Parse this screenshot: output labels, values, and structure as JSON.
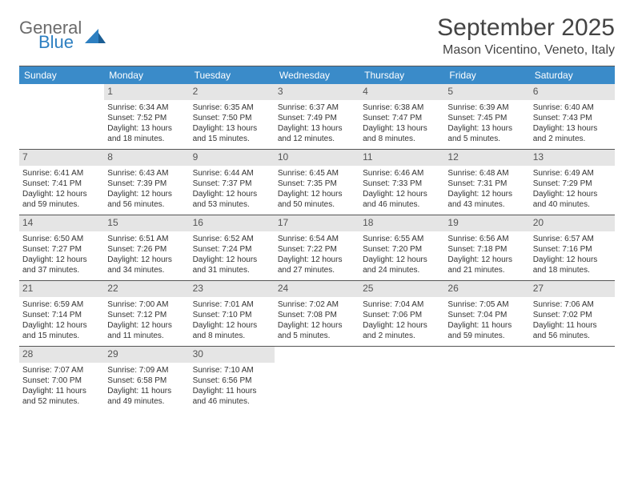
{
  "logo": {
    "word1": "General",
    "word2": "Blue"
  },
  "title": "September 2025",
  "location": "Mason Vicentino, Veneto, Italy",
  "colors": {
    "header_bg": "#3a8bc9",
    "header_text": "#ffffff",
    "daynum_bg": "#e5e5e5",
    "daynum_text": "#555555",
    "body_text": "#333333",
    "rule": "#555555",
    "logo_gray": "#6b6b6b",
    "logo_blue": "#2d7fc1"
  },
  "typography": {
    "title_fontsize": 30,
    "location_fontsize": 16,
    "header_fontsize": 12,
    "daynum_fontsize": 12,
    "body_fontsize": 10
  },
  "dayHeaders": [
    "Sunday",
    "Monday",
    "Tuesday",
    "Wednesday",
    "Thursday",
    "Friday",
    "Saturday"
  ],
  "weeks": [
    [
      null,
      {
        "n": "1",
        "sr": "Sunrise: 6:34 AM",
        "ss": "Sunset: 7:52 PM",
        "d1": "Daylight: 13 hours",
        "d2": "and 18 minutes."
      },
      {
        "n": "2",
        "sr": "Sunrise: 6:35 AM",
        "ss": "Sunset: 7:50 PM",
        "d1": "Daylight: 13 hours",
        "d2": "and 15 minutes."
      },
      {
        "n": "3",
        "sr": "Sunrise: 6:37 AM",
        "ss": "Sunset: 7:49 PM",
        "d1": "Daylight: 13 hours",
        "d2": "and 12 minutes."
      },
      {
        "n": "4",
        "sr": "Sunrise: 6:38 AM",
        "ss": "Sunset: 7:47 PM",
        "d1": "Daylight: 13 hours",
        "d2": "and 8 minutes."
      },
      {
        "n": "5",
        "sr": "Sunrise: 6:39 AM",
        "ss": "Sunset: 7:45 PM",
        "d1": "Daylight: 13 hours",
        "d2": "and 5 minutes."
      },
      {
        "n": "6",
        "sr": "Sunrise: 6:40 AM",
        "ss": "Sunset: 7:43 PM",
        "d1": "Daylight: 13 hours",
        "d2": "and 2 minutes."
      }
    ],
    [
      {
        "n": "7",
        "sr": "Sunrise: 6:41 AM",
        "ss": "Sunset: 7:41 PM",
        "d1": "Daylight: 12 hours",
        "d2": "and 59 minutes."
      },
      {
        "n": "8",
        "sr": "Sunrise: 6:43 AM",
        "ss": "Sunset: 7:39 PM",
        "d1": "Daylight: 12 hours",
        "d2": "and 56 minutes."
      },
      {
        "n": "9",
        "sr": "Sunrise: 6:44 AM",
        "ss": "Sunset: 7:37 PM",
        "d1": "Daylight: 12 hours",
        "d2": "and 53 minutes."
      },
      {
        "n": "10",
        "sr": "Sunrise: 6:45 AM",
        "ss": "Sunset: 7:35 PM",
        "d1": "Daylight: 12 hours",
        "d2": "and 50 minutes."
      },
      {
        "n": "11",
        "sr": "Sunrise: 6:46 AM",
        "ss": "Sunset: 7:33 PM",
        "d1": "Daylight: 12 hours",
        "d2": "and 46 minutes."
      },
      {
        "n": "12",
        "sr": "Sunrise: 6:48 AM",
        "ss": "Sunset: 7:31 PM",
        "d1": "Daylight: 12 hours",
        "d2": "and 43 minutes."
      },
      {
        "n": "13",
        "sr": "Sunrise: 6:49 AM",
        "ss": "Sunset: 7:29 PM",
        "d1": "Daylight: 12 hours",
        "d2": "and 40 minutes."
      }
    ],
    [
      {
        "n": "14",
        "sr": "Sunrise: 6:50 AM",
        "ss": "Sunset: 7:27 PM",
        "d1": "Daylight: 12 hours",
        "d2": "and 37 minutes."
      },
      {
        "n": "15",
        "sr": "Sunrise: 6:51 AM",
        "ss": "Sunset: 7:26 PM",
        "d1": "Daylight: 12 hours",
        "d2": "and 34 minutes."
      },
      {
        "n": "16",
        "sr": "Sunrise: 6:52 AM",
        "ss": "Sunset: 7:24 PM",
        "d1": "Daylight: 12 hours",
        "d2": "and 31 minutes."
      },
      {
        "n": "17",
        "sr": "Sunrise: 6:54 AM",
        "ss": "Sunset: 7:22 PM",
        "d1": "Daylight: 12 hours",
        "d2": "and 27 minutes."
      },
      {
        "n": "18",
        "sr": "Sunrise: 6:55 AM",
        "ss": "Sunset: 7:20 PM",
        "d1": "Daylight: 12 hours",
        "d2": "and 24 minutes."
      },
      {
        "n": "19",
        "sr": "Sunrise: 6:56 AM",
        "ss": "Sunset: 7:18 PM",
        "d1": "Daylight: 12 hours",
        "d2": "and 21 minutes."
      },
      {
        "n": "20",
        "sr": "Sunrise: 6:57 AM",
        "ss": "Sunset: 7:16 PM",
        "d1": "Daylight: 12 hours",
        "d2": "and 18 minutes."
      }
    ],
    [
      {
        "n": "21",
        "sr": "Sunrise: 6:59 AM",
        "ss": "Sunset: 7:14 PM",
        "d1": "Daylight: 12 hours",
        "d2": "and 15 minutes."
      },
      {
        "n": "22",
        "sr": "Sunrise: 7:00 AM",
        "ss": "Sunset: 7:12 PM",
        "d1": "Daylight: 12 hours",
        "d2": "and 11 minutes."
      },
      {
        "n": "23",
        "sr": "Sunrise: 7:01 AM",
        "ss": "Sunset: 7:10 PM",
        "d1": "Daylight: 12 hours",
        "d2": "and 8 minutes."
      },
      {
        "n": "24",
        "sr": "Sunrise: 7:02 AM",
        "ss": "Sunset: 7:08 PM",
        "d1": "Daylight: 12 hours",
        "d2": "and 5 minutes."
      },
      {
        "n": "25",
        "sr": "Sunrise: 7:04 AM",
        "ss": "Sunset: 7:06 PM",
        "d1": "Daylight: 12 hours",
        "d2": "and 2 minutes."
      },
      {
        "n": "26",
        "sr": "Sunrise: 7:05 AM",
        "ss": "Sunset: 7:04 PM",
        "d1": "Daylight: 11 hours",
        "d2": "and 59 minutes."
      },
      {
        "n": "27",
        "sr": "Sunrise: 7:06 AM",
        "ss": "Sunset: 7:02 PM",
        "d1": "Daylight: 11 hours",
        "d2": "and 56 minutes."
      }
    ],
    [
      {
        "n": "28",
        "sr": "Sunrise: 7:07 AM",
        "ss": "Sunset: 7:00 PM",
        "d1": "Daylight: 11 hours",
        "d2": "and 52 minutes."
      },
      {
        "n": "29",
        "sr": "Sunrise: 7:09 AM",
        "ss": "Sunset: 6:58 PM",
        "d1": "Daylight: 11 hours",
        "d2": "and 49 minutes."
      },
      {
        "n": "30",
        "sr": "Sunrise: 7:10 AM",
        "ss": "Sunset: 6:56 PM",
        "d1": "Daylight: 11 hours",
        "d2": "and 46 minutes."
      },
      null,
      null,
      null,
      null
    ]
  ]
}
